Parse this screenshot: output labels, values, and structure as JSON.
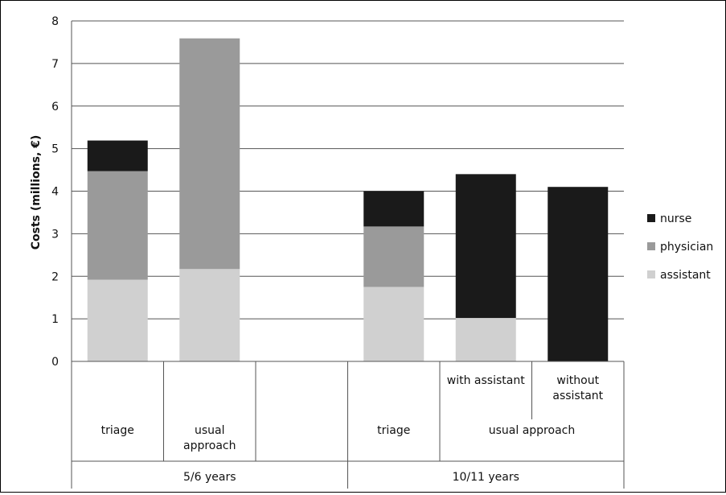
{
  "chart_data": {
    "type": "bar",
    "stacked": true,
    "title": "",
    "ylabel": "Costs (millions, €)",
    "ylim": [
      0,
      8
    ],
    "yticks": [
      "0",
      "1",
      "2",
      "3",
      "4",
      "5",
      "6",
      "7",
      "8"
    ],
    "grid": true,
    "legend_position": "right",
    "slots": [
      {
        "label": "triage",
        "values": [
          1.92,
          2.55,
          0.72
        ]
      },
      {
        "label": "usual approach",
        "values": [
          2.17,
          5.42,
          0
        ]
      },
      {
        "label": "",
        "values": null
      },
      {
        "label": "triage",
        "values": [
          1.75,
          1.42,
          0.83
        ]
      },
      {
        "label": "with assistant",
        "values": [
          1.02,
          0,
          3.38
        ]
      },
      {
        "label": "without assistant",
        "values": [
          0,
          0,
          4.1
        ]
      }
    ],
    "group_labels": [
      "usual approach"
    ],
    "age_groups": [
      "5/6 years",
      "10/11 years"
    ],
    "series": [
      {
        "name": "assistant",
        "color": "#d0d0d0"
      },
      {
        "name": "physician",
        "color": "#9a9a9a"
      },
      {
        "name": "nurse",
        "color": "#1a1a1a"
      }
    ]
  }
}
